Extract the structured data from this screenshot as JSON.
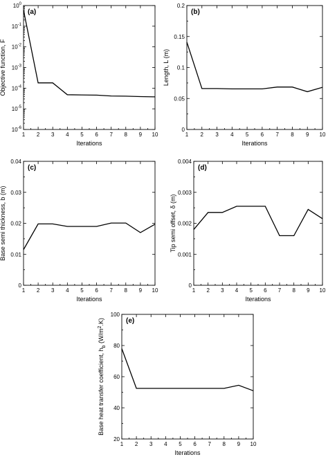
{
  "chart_data": [
    {
      "type": "line",
      "panel_label": "(a)",
      "title": "",
      "xlabel": "Iterations",
      "ylabel": "Objective function, F",
      "xlim": [
        1,
        10
      ],
      "ylim": [
        1e-06,
        1
      ],
      "yscale": "log",
      "x_ticks": [
        "1",
        "2",
        "3",
        "4",
        "5",
        "6",
        "7",
        "8",
        "9",
        "10"
      ],
      "y_ticks": [
        {
          "value": 1e-06,
          "base": "10",
          "exp": "-6"
        },
        {
          "value": 1e-05,
          "base": "10",
          "exp": "-5"
        },
        {
          "value": 0.0001,
          "base": "10",
          "exp": "-4"
        },
        {
          "value": 0.001,
          "base": "10",
          "exp": "-3"
        },
        {
          "value": 0.01,
          "base": "10",
          "exp": "-2"
        },
        {
          "value": 0.1,
          "base": "10",
          "exp": "-1"
        },
        {
          "value": 1,
          "base": "10",
          "exp": "0"
        }
      ],
      "x": [
        1,
        2,
        3,
        4,
        5,
        6,
        7,
        8,
        9,
        10
      ],
      "values": [
        0.6,
        0.00018,
        0.00018,
        4.8e-05,
        4.7e-05,
        4.6e-05,
        4.2e-05,
        4.1e-05,
        3.9e-05,
        3.8e-05
      ]
    },
    {
      "type": "line",
      "panel_label": "(b)",
      "title": "",
      "xlabel": "Iterations",
      "ylabel": "Length, L (m)",
      "xlim": [
        1,
        10
      ],
      "ylim": [
        0,
        0.2
      ],
      "yscale": "linear",
      "x_ticks": [
        "1",
        "2",
        "3",
        "4",
        "5",
        "6",
        "7",
        "8",
        "9",
        "10"
      ],
      "y_ticks": [
        {
          "value": 0,
          "label": "0"
        },
        {
          "value": 0.05,
          "label": "0.05"
        },
        {
          "value": 0.1,
          "label": "0.1"
        },
        {
          "value": 0.15,
          "label": "0.15"
        },
        {
          "value": 0.2,
          "label": "0.2"
        }
      ],
      "x": [
        1,
        2,
        3,
        4,
        5,
        6,
        7,
        8,
        9,
        10
      ],
      "values": [
        0.141,
        0.066,
        0.066,
        0.0655,
        0.0655,
        0.0655,
        0.0685,
        0.0685,
        0.061,
        0.068
      ]
    },
    {
      "type": "line",
      "panel_label": "(c)",
      "title": "",
      "xlabel": "Iterations",
      "ylabel": "Base semi thickness, b (m)",
      "xlim": [
        1,
        10
      ],
      "ylim": [
        0,
        0.04
      ],
      "yscale": "linear",
      "x_ticks": [
        "1",
        "2",
        "3",
        "4",
        "5",
        "6",
        "7",
        "8",
        "9",
        "10"
      ],
      "y_ticks": [
        {
          "value": 0,
          "label": "0"
        },
        {
          "value": 0.01,
          "label": "0.01"
        },
        {
          "value": 0.02,
          "label": "0.02"
        },
        {
          "value": 0.03,
          "label": "0.03"
        },
        {
          "value": 0.04,
          "label": "0.04"
        }
      ],
      "x": [
        1,
        2,
        3,
        4,
        5,
        6,
        7,
        8,
        9,
        10
      ],
      "values": [
        0.0115,
        0.0198,
        0.0198,
        0.019,
        0.019,
        0.019,
        0.0201,
        0.0201,
        0.017,
        0.0197
      ]
    },
    {
      "type": "line",
      "panel_label": "(d)",
      "title": "",
      "xlabel": "Iterations",
      "ylabel": "Tip semi offset, δ (m)",
      "xlim": [
        1,
        10
      ],
      "ylim": [
        0,
        0.004
      ],
      "yscale": "linear",
      "x_ticks": [
        "1",
        "2",
        "3",
        "4",
        "5",
        "6",
        "7",
        "8",
        "9",
        "10"
      ],
      "y_ticks": [
        {
          "value": 0,
          "label": "0"
        },
        {
          "value": 0.001,
          "label": "0.001"
        },
        {
          "value": 0.002,
          "label": "0.002"
        },
        {
          "value": 0.003,
          "label": "0.003"
        },
        {
          "value": 0.004,
          "label": "0.004"
        }
      ],
      "x": [
        1,
        2,
        3,
        4,
        5,
        6,
        7,
        8,
        9,
        10
      ],
      "values": [
        0.0018,
        0.00235,
        0.00235,
        0.00255,
        0.00255,
        0.00255,
        0.0016,
        0.0016,
        0.00245,
        0.00215
      ]
    },
    {
      "type": "line",
      "panel_label": "(e)",
      "title": "",
      "xlabel": "Iterations",
      "ylabel": "Base heat transfer coefficient, h_b (W/m²·K)",
      "ylabel_parts": {
        "main": "Base heat transfer coefficient, h",
        "sub": "b",
        "unit_pre": " (W/m",
        "sup": "2",
        "unit_post": ".K)"
      },
      "xlim": [
        1,
        10
      ],
      "ylim": [
        20,
        100
      ],
      "yscale": "linear",
      "x_ticks": [
        "1",
        "2",
        "3",
        "4",
        "5",
        "6",
        "7",
        "8",
        "9",
        "10"
      ],
      "y_ticks": [
        {
          "value": 20,
          "label": "20"
        },
        {
          "value": 40,
          "label": "40"
        },
        {
          "value": 60,
          "label": "60"
        },
        {
          "value": 80,
          "label": "80"
        },
        {
          "value": 100,
          "label": "100"
        }
      ],
      "x": [
        1,
        2,
        3,
        4,
        5,
        6,
        7,
        8,
        9,
        10
      ],
      "values": [
        78,
        52.5,
        52.5,
        52.5,
        52.5,
        52.5,
        52.5,
        52.5,
        54.5,
        51
      ]
    }
  ]
}
